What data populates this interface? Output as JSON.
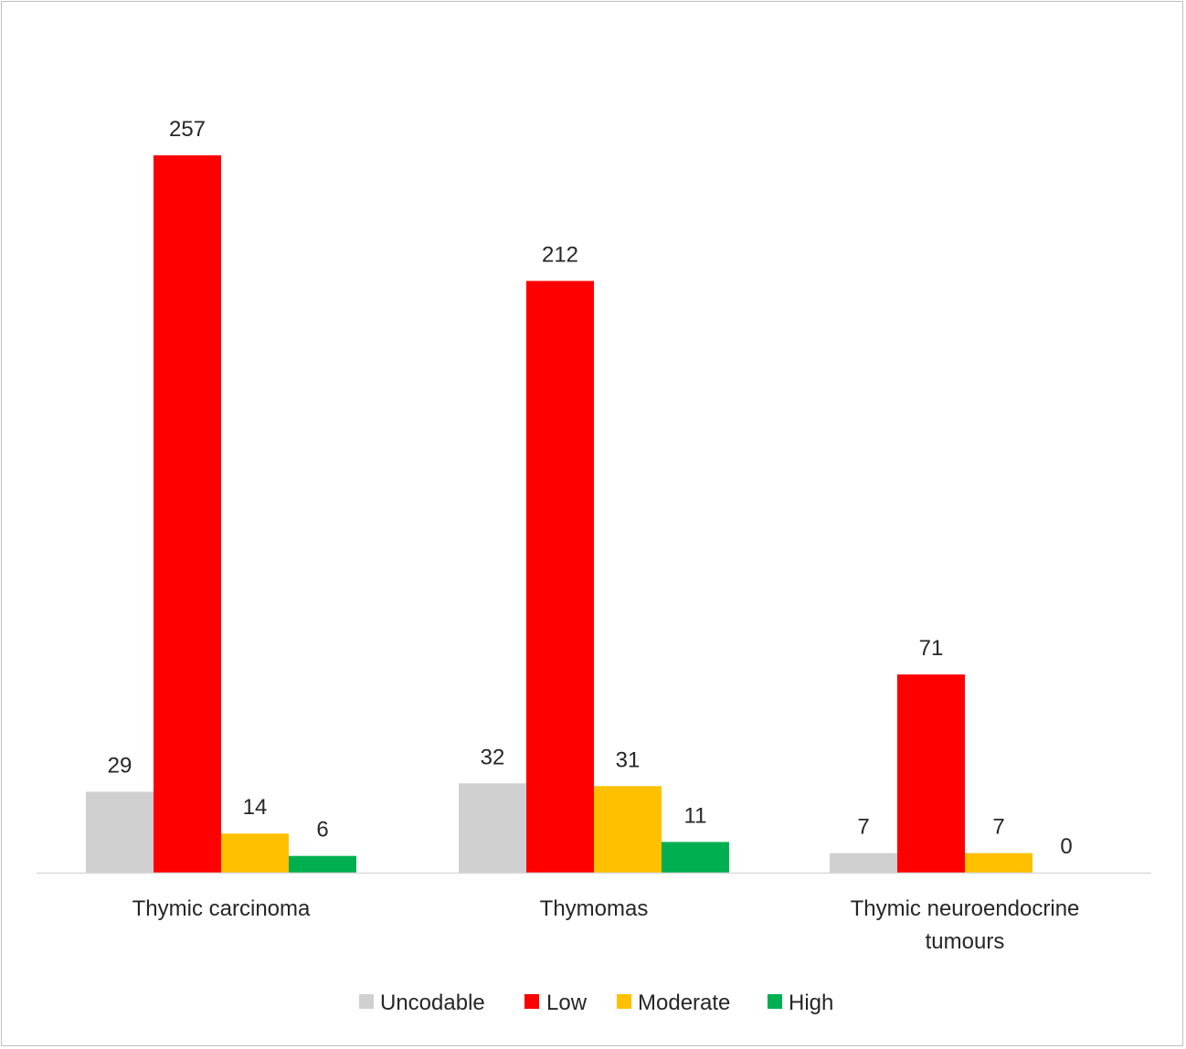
{
  "chart_data": {
    "type": "bar",
    "title": "",
    "xlabel": "",
    "ylabel": "",
    "ylim": [
      0,
      280
    ],
    "grid": false,
    "legend_position": "bottom",
    "categories": [
      "Thymic carcinoma",
      "Thymomas",
      "Thymic neuroendocrine tumours"
    ],
    "series": [
      {
        "name": "Uncodable",
        "color": "#d0d0d0",
        "values": [
          29,
          32,
          7
        ]
      },
      {
        "name": "Low",
        "color": "#ff0000",
        "values": [
          257,
          212,
          71
        ]
      },
      {
        "name": "Moderate",
        "color": "#ffc000",
        "values": [
          14,
          31,
          7
        ]
      },
      {
        "name": "High",
        "color": "#00b050",
        "values": [
          6,
          11,
          0
        ]
      }
    ]
  }
}
